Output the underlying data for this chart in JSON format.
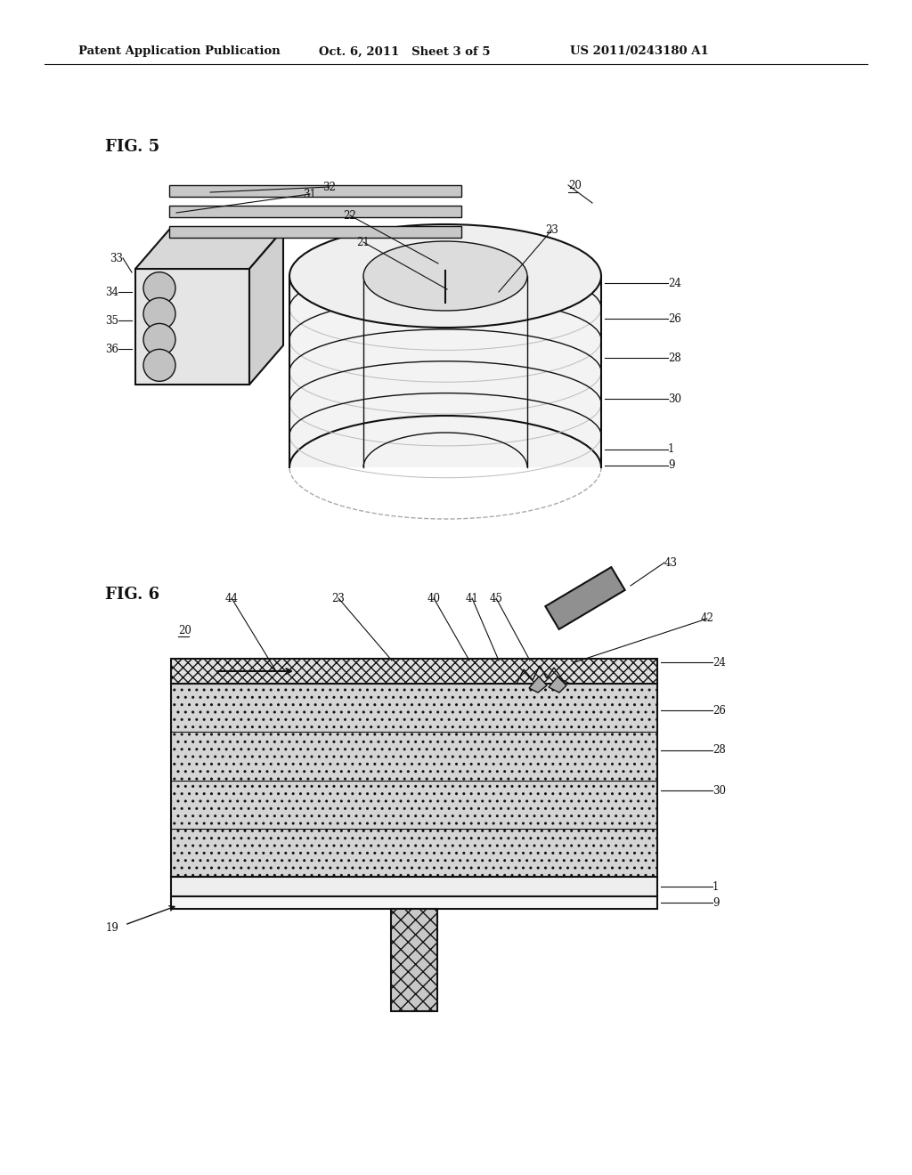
{
  "bg_color": "#ffffff",
  "header_left": "Patent Application Publication",
  "header_mid": "Oct. 6, 2011   Sheet 3 of 5",
  "header_right": "US 2011/0243180 A1",
  "fig5_label": "FIG. 5",
  "fig6_label": "FIG. 6",
  "col": "#111111",
  "lfs": 8.5,
  "hfs": 9.5,
  "figfs": 13
}
